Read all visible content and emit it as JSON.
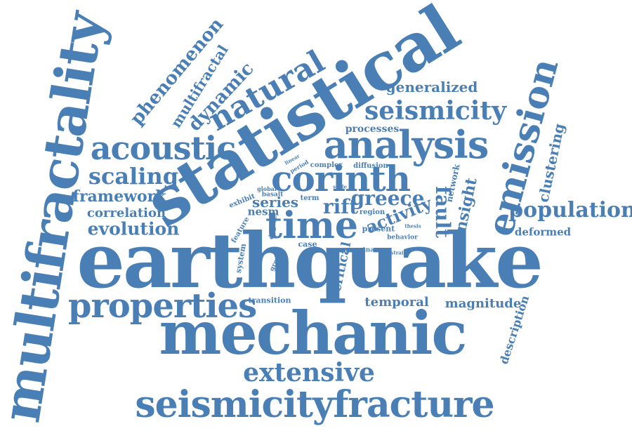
{
  "title": "",
  "color": "#4a7fb5",
  "words": [
    {
      "id": "earthquake",
      "text": "earthquake"
    },
    {
      "id": "mechanic",
      "text": "mechanic"
    },
    {
      "id": "statistical",
      "text": "statistical"
    },
    {
      "id": "multifractality",
      "text": "multifractality"
    },
    {
      "id": "seismicityfracture",
      "text": "seismicityfracture"
    },
    {
      "id": "analysis",
      "text": "analysis"
    },
    {
      "id": "properties",
      "text": "properties"
    },
    {
      "id": "emission",
      "text": "emission"
    },
    {
      "id": "time",
      "text": "time"
    },
    {
      "id": "corinth",
      "text": "corinth"
    },
    {
      "id": "acoustic",
      "text": "acoustic"
    },
    {
      "id": "seismicity",
      "text": "seismicity"
    },
    {
      "id": "extensive",
      "text": "extensive"
    },
    {
      "id": "natural",
      "text": "natural"
    },
    {
      "id": "population",
      "text": "population"
    },
    {
      "id": "scaling",
      "text": "scaling"
    },
    {
      "id": "phenomenon",
      "text": "phenomenon"
    },
    {
      "id": "dynamic",
      "text": "dynamic"
    },
    {
      "id": "multifractal",
      "text": "multifractal"
    },
    {
      "id": "evolution",
      "text": "evolution"
    },
    {
      "id": "framework",
      "text": "framework"
    },
    {
      "id": "correlation",
      "text": "correlation"
    },
    {
      "id": "generalized",
      "text": "generalized"
    },
    {
      "id": "greece",
      "text": "greece"
    },
    {
      "id": "rift",
      "text": "rift"
    },
    {
      "id": "series",
      "text": "series"
    },
    {
      "id": "fault",
      "text": "fault"
    },
    {
      "id": "activity",
      "text": "activity"
    },
    {
      "id": "insight",
      "text": "insight"
    },
    {
      "id": "clustering",
      "text": "clustering"
    },
    {
      "id": "temporal",
      "text": "temporal"
    },
    {
      "id": "magnitude",
      "text": "magnitude"
    },
    {
      "id": "description",
      "text": "description"
    },
    {
      "id": "deformed",
      "text": "deformed"
    },
    {
      "id": "processes",
      "text": "processes"
    },
    {
      "id": "critical",
      "text": "critical"
    },
    {
      "id": "nesm",
      "text": "nesm"
    },
    {
      "id": "network",
      "text": "network"
    },
    {
      "id": "transition",
      "text": "transition"
    },
    {
      "id": "complex",
      "text": "complex"
    },
    {
      "id": "diffusion",
      "text": "diffusion"
    },
    {
      "id": "basalt",
      "text": "basalt"
    },
    {
      "id": "global",
      "text": "global"
    },
    {
      "id": "exhibit",
      "text": "exhibit"
    },
    {
      "id": "term",
      "text": "term"
    },
    {
      "id": "feature",
      "text": "feature"
    },
    {
      "id": "degree",
      "text": "degree"
    },
    {
      "id": "region",
      "text": "region"
    },
    {
      "id": "present",
      "text": "present"
    },
    {
      "id": "thesis",
      "text": "thesis"
    },
    {
      "id": "behavior",
      "text": "behavior"
    },
    {
      "id": "case",
      "text": "case"
    },
    {
      "id": "system",
      "text": "system"
    },
    {
      "id": "growth",
      "text": "growth"
    },
    {
      "id": "result",
      "text": "result"
    },
    {
      "id": "etna",
      "text": "etna"
    },
    {
      "id": "strain",
      "text": "strain"
    },
    {
      "id": "linear",
      "text": "linear"
    },
    {
      "id": "period",
      "text": "period"
    },
    {
      "id": "scale",
      "text": "scale"
    }
  ]
}
